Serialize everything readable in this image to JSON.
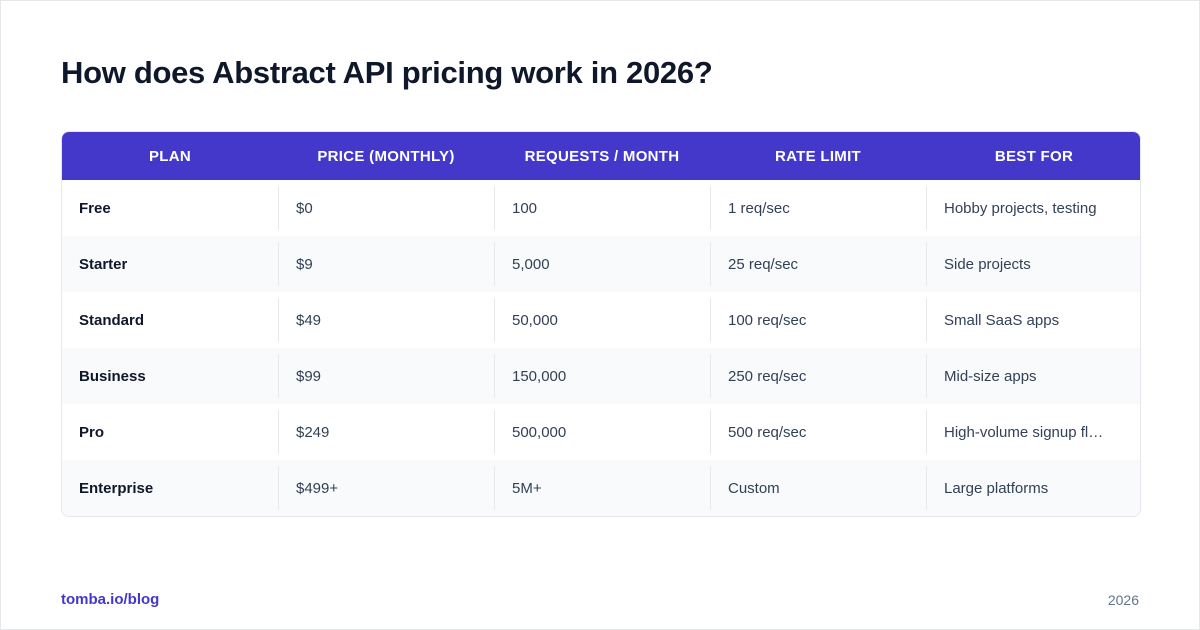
{
  "title": "How does Abstract API pricing work in 2026?",
  "table": {
    "headers": [
      "PLAN",
      "PRICE (MONTHLY)",
      "REQUESTS / MONTH",
      "RATE LIMIT",
      "BEST FOR"
    ],
    "rows": [
      [
        "Free",
        "$0",
        "100",
        "1 req/sec",
        "Hobby projects, testing"
      ],
      [
        "Starter",
        "$9",
        "5,000",
        "25 req/sec",
        "Side projects"
      ],
      [
        "Standard",
        "$49",
        "50,000",
        "100 req/sec",
        "Small SaaS apps"
      ],
      [
        "Business",
        "$99",
        "150,000",
        "250 req/sec",
        "Mid-size apps"
      ],
      [
        "Pro",
        "$249",
        "500,000",
        "500 req/sec",
        "High-volume signup flows"
      ],
      [
        "Enterprise",
        "$499+",
        "5M+",
        "Custom",
        "Large platforms"
      ]
    ]
  },
  "footer": {
    "source": "tomba.io/blog",
    "year": "2026"
  },
  "colors": {
    "header_bg": "#4338ca",
    "accent": "#4338ca",
    "alt_row_bg": "#f8fafc"
  }
}
